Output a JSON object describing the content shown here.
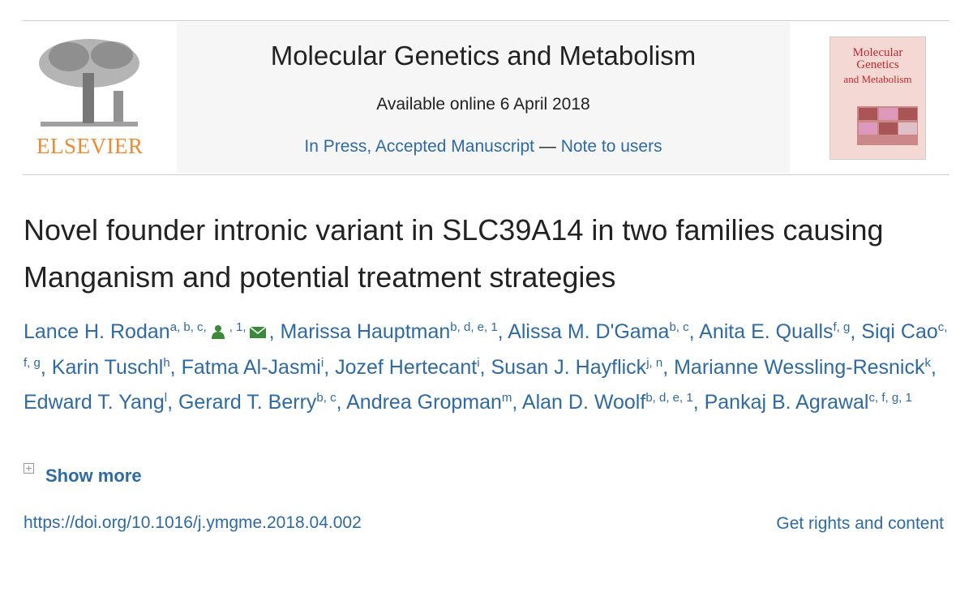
{
  "header": {
    "publisher": "ELSEVIER",
    "journal": "Molecular Genetics and Metabolism",
    "available": "Available online 6 April 2018",
    "status": "In Press, Accepted Manuscript",
    "separator": "—",
    "note": "Note to users",
    "cover_title": [
      "Molecular Genetics",
      "and Metabolism"
    ]
  },
  "article": {
    "title": "Novel founder intronic variant in SLC39A14 in two families causing Manganism and potential treatment strategies",
    "author_separator": ", ",
    "authors": [
      {
        "name": "Lance H. Rodan",
        "sup": "a, b, c,",
        "sup2": ", 1,"
      },
      {
        "name": "Marissa Hauptman",
        "sup": "b, d, e, 1"
      },
      {
        "name": "Alissa M. D'Gama",
        "sup": "b, c"
      },
      {
        "name": "Anita E. Qualls",
        "sup": "f, g"
      },
      {
        "name": "Siqi Cao",
        "sup": "c, f, g"
      },
      {
        "name": "Karin Tuschl",
        "sup": "h"
      },
      {
        "name": "Fatma Al-Jasmi",
        "sup": "i"
      },
      {
        "name": "Jozef Hertecant",
        "sup": "i"
      },
      {
        "name": "Susan J. Hayflick",
        "sup": "j, n"
      },
      {
        "name": "Marianne Wessling-Resnick",
        "sup": "k"
      },
      {
        "name": "Edward T. Yang",
        "sup": "l"
      },
      {
        "name": "Gerard T. Berry",
        "sup": "b, c"
      },
      {
        "name": "Andrea Gropman",
        "sup": "m"
      },
      {
        "name": "Alan D. Woolf",
        "sup": "b, d, e, 1"
      },
      {
        "name": "Pankaj B. Agrawal",
        "sup": "c, f, g, 1"
      }
    ],
    "show_more": "Show more",
    "doi": "https://doi.org/10.1016/j.ymgme.2018.04.002",
    "rights": "Get rights and content"
  }
}
